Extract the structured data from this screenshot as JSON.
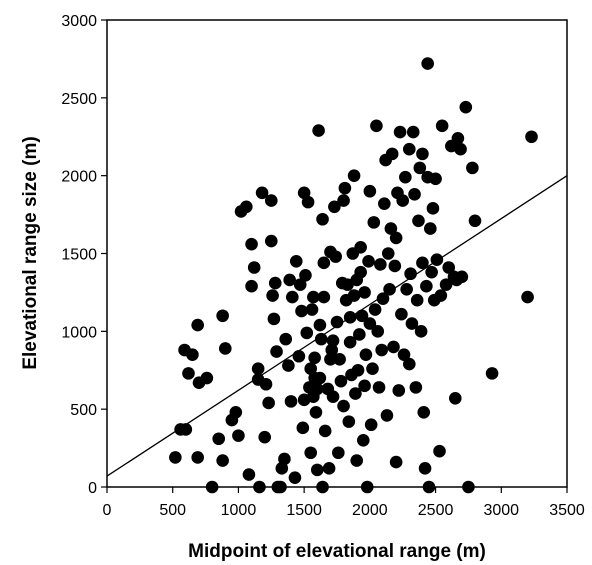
{
  "chart_data": {
    "type": "scatter",
    "title": "",
    "xlabel": "Midpoint of elevational range (m)",
    "ylabel": "Elevational range size (m)",
    "xlim": [
      0,
      3500
    ],
    "ylim": [
      0,
      3000
    ],
    "xticks": [
      "0",
      "500",
      "1000",
      "1500",
      "2000",
      "2500",
      "3000",
      "3500"
    ],
    "yticks": [
      "0",
      "500",
      "1000",
      "1500",
      "2000",
      "2500",
      "3000"
    ],
    "grid": false,
    "legend": "none",
    "marker_color": "#000000",
    "trendline": {
      "x": [
        0,
        3500
      ],
      "y": [
        70,
        2000
      ]
    },
    "series": [
      {
        "points": [
          [
            520,
            190
          ],
          [
            560,
            370
          ],
          [
            600,
            370
          ],
          [
            590,
            880
          ],
          [
            620,
            730
          ],
          [
            650,
            850
          ],
          [
            690,
            1040
          ],
          [
            690,
            190
          ],
          [
            700,
            670
          ],
          [
            760,
            700
          ],
          [
            800,
            0
          ],
          [
            850,
            310
          ],
          [
            880,
            1100
          ],
          [
            880,
            170
          ],
          [
            900,
            890
          ],
          [
            950,
            430
          ],
          [
            980,
            480
          ],
          [
            1000,
            330
          ],
          [
            1020,
            1770
          ],
          [
            1060,
            1800
          ],
          [
            1080,
            80
          ],
          [
            1100,
            1290
          ],
          [
            1100,
            1560
          ],
          [
            1120,
            1410
          ],
          [
            1150,
            690
          ],
          [
            1150,
            760
          ],
          [
            1160,
            0
          ],
          [
            1180,
            1890
          ],
          [
            1200,
            320
          ],
          [
            1210,
            660
          ],
          [
            1230,
            540
          ],
          [
            1250,
            1840
          ],
          [
            1250,
            1580
          ],
          [
            1260,
            1230
          ],
          [
            1270,
            1080
          ],
          [
            1280,
            1310
          ],
          [
            1290,
            870
          ],
          [
            1300,
            0
          ],
          [
            1320,
            0
          ],
          [
            1330,
            120
          ],
          [
            1350,
            180
          ],
          [
            1360,
            950
          ],
          [
            1380,
            780
          ],
          [
            1390,
            1330
          ],
          [
            1400,
            550
          ],
          [
            1410,
            1220
          ],
          [
            1430,
            60
          ],
          [
            1440,
            1450
          ],
          [
            1460,
            840
          ],
          [
            1470,
            1300
          ],
          [
            1480,
            1130
          ],
          [
            1490,
            380
          ],
          [
            1500,
            560
          ],
          [
            1500,
            1890
          ],
          [
            1510,
            1360
          ],
          [
            1520,
            990
          ],
          [
            1530,
            1830
          ],
          [
            1540,
            640
          ],
          [
            1550,
            760
          ],
          [
            1550,
            220
          ],
          [
            1560,
            1140
          ],
          [
            1570,
            1220
          ],
          [
            1570,
            580
          ],
          [
            1580,
            700
          ],
          [
            1580,
            830
          ],
          [
            1590,
            480
          ],
          [
            1600,
            630
          ],
          [
            1600,
            110
          ],
          [
            1610,
            2290
          ],
          [
            1620,
            700
          ],
          [
            1620,
            1040
          ],
          [
            1630,
            950
          ],
          [
            1640,
            0
          ],
          [
            1640,
            1720
          ],
          [
            1650,
            1440
          ],
          [
            1650,
            1220
          ],
          [
            1660,
            360
          ],
          [
            1680,
            630
          ],
          [
            1690,
            120
          ],
          [
            1700,
            820
          ],
          [
            1700,
            1510
          ],
          [
            1710,
            880
          ],
          [
            1720,
            580
          ],
          [
            1720,
            940
          ],
          [
            1730,
            1800
          ],
          [
            1740,
            1480
          ],
          [
            1750,
            1060
          ],
          [
            1760,
            220
          ],
          [
            1770,
            820
          ],
          [
            1780,
            680
          ],
          [
            1790,
            1310
          ],
          [
            1800,
            1840
          ],
          [
            1800,
            520
          ],
          [
            1810,
            1920
          ],
          [
            1820,
            1200
          ],
          [
            1830,
            1300
          ],
          [
            1840,
            420
          ],
          [
            1850,
            930
          ],
          [
            1850,
            1090
          ],
          [
            1860,
            720
          ],
          [
            1870,
            1500
          ],
          [
            1880,
            2000
          ],
          [
            1880,
            1230
          ],
          [
            1890,
            600
          ],
          [
            1900,
            170
          ],
          [
            1900,
            1330
          ],
          [
            1910,
            750
          ],
          [
            1920,
            980
          ],
          [
            1930,
            1540
          ],
          [
            1930,
            1380
          ],
          [
            1940,
            1100
          ],
          [
            1950,
            300
          ],
          [
            1960,
            650
          ],
          [
            1960,
            1250
          ],
          [
            1970,
            850
          ],
          [
            1980,
            0
          ],
          [
            1990,
            1450
          ],
          [
            2000,
            1050
          ],
          [
            2000,
            1900
          ],
          [
            2010,
            400
          ],
          [
            2020,
            760
          ],
          [
            2030,
            1700
          ],
          [
            2040,
            1140
          ],
          [
            2050,
            2320
          ],
          [
            2060,
            1000
          ],
          [
            2070,
            640
          ],
          [
            2080,
            1430
          ],
          [
            2090,
            880
          ],
          [
            2100,
            1210
          ],
          [
            2110,
            1820
          ],
          [
            2120,
            2100
          ],
          [
            2130,
            460
          ],
          [
            2140,
            1500
          ],
          [
            2150,
            1270
          ],
          [
            2160,
            1660
          ],
          [
            2170,
            2140
          ],
          [
            2180,
            900
          ],
          [
            2190,
            1420
          ],
          [
            2200,
            1600
          ],
          [
            2200,
            160
          ],
          [
            2210,
            1890
          ],
          [
            2220,
            620
          ],
          [
            2230,
            2280
          ],
          [
            2240,
            1110
          ],
          [
            2250,
            1840
          ],
          [
            2260,
            850
          ],
          [
            2270,
            1990
          ],
          [
            2280,
            1270
          ],
          [
            2300,
            790
          ],
          [
            2300,
            2170
          ],
          [
            2310,
            1370
          ],
          [
            2320,
            1050
          ],
          [
            2330,
            2280
          ],
          [
            2340,
            1880
          ],
          [
            2350,
            640
          ],
          [
            2360,
            1200
          ],
          [
            2370,
            1710
          ],
          [
            2380,
            2050
          ],
          [
            2390,
            1000
          ],
          [
            2400,
            2140
          ],
          [
            2400,
            1440
          ],
          [
            2410,
            480
          ],
          [
            2420,
            120
          ],
          [
            2430,
            1290
          ],
          [
            2440,
            2720
          ],
          [
            2440,
            1990
          ],
          [
            2450,
            0
          ],
          [
            2460,
            1660
          ],
          [
            2470,
            1380
          ],
          [
            2480,
            1790
          ],
          [
            2490,
            1200
          ],
          [
            2500,
            1980
          ],
          [
            2510,
            1460
          ],
          [
            2530,
            230
          ],
          [
            2540,
            1230
          ],
          [
            2550,
            2320
          ],
          [
            2580,
            1300
          ],
          [
            2600,
            1410
          ],
          [
            2620,
            2190
          ],
          [
            2640,
            1350
          ],
          [
            2650,
            570
          ],
          [
            2660,
            1330
          ],
          [
            2670,
            2240
          ],
          [
            2690,
            2170
          ],
          [
            2700,
            1350
          ],
          [
            2730,
            2440
          ],
          [
            2750,
            0
          ],
          [
            2780,
            2050
          ],
          [
            2800,
            1710
          ],
          [
            2930,
            730
          ],
          [
            3200,
            1220
          ],
          [
            3230,
            2250
          ]
        ]
      }
    ]
  }
}
